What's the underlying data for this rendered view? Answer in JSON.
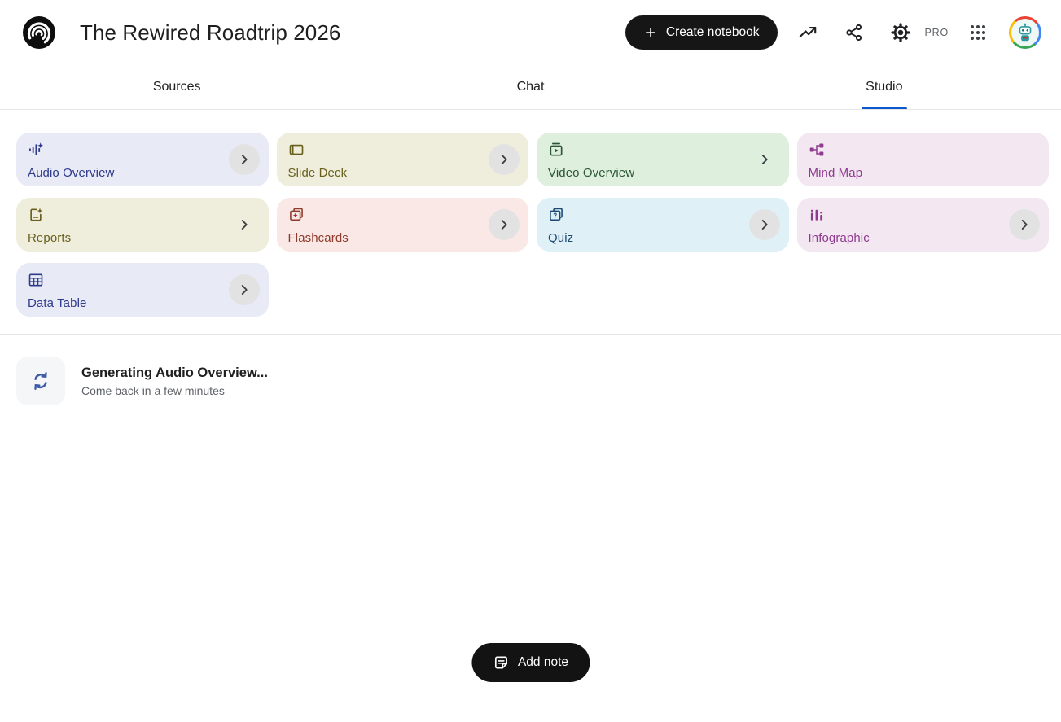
{
  "header": {
    "title": "The Rewired Roadtrip 2026",
    "create_notebook_label": "Create notebook",
    "pro_badge": "PRO"
  },
  "tabs": [
    {
      "label": "Sources",
      "active": false
    },
    {
      "label": "Chat",
      "active": false
    },
    {
      "label": "Studio",
      "active": true
    }
  ],
  "studio": {
    "cards": [
      {
        "label": "Audio Overview",
        "icon": "audio-waveform-sparkle-icon",
        "bg": "#E8EAF6",
        "fg": "#2E3A8C",
        "chevron": "circle"
      },
      {
        "label": "Slide Deck",
        "icon": "slide-deck-icon",
        "bg": "#EFEEDC",
        "fg": "#6A601E",
        "chevron": "circle"
      },
      {
        "label": "Video Overview",
        "icon": "video-overview-icon",
        "bg": "#DEEFDE",
        "fg": "#2C5633",
        "chevron": "plain"
      },
      {
        "label": "Mind Map",
        "icon": "mind-map-icon",
        "bg": "#F3E8F1",
        "fg": "#8F3A8F",
        "chevron": "none"
      },
      {
        "label": "Reports",
        "icon": "report-sparkle-icon",
        "bg": "#EFEEDC",
        "fg": "#6A601E",
        "chevron": "plain"
      },
      {
        "label": "Flashcards",
        "icon": "flashcards-icon",
        "bg": "#F9E8E5",
        "fg": "#8F3A2B",
        "chevron": "circle"
      },
      {
        "label": "Quiz",
        "icon": "quiz-icon",
        "bg": "#DFF0F6",
        "fg": "#1C4A74",
        "chevron": "circle"
      },
      {
        "label": "Infographic",
        "icon": "infographic-icon",
        "bg": "#F3E8F1",
        "fg": "#8F3A8F",
        "chevron": "circle"
      },
      {
        "label": "Data Table",
        "icon": "data-table-icon",
        "bg": "#E8EAF6",
        "fg": "#2E3A8C",
        "chevron": "circle"
      }
    ],
    "status": {
      "title": "Generating Audio Overview...",
      "subtitle": "Come back in a few minutes"
    },
    "add_note_label": "Add note"
  },
  "colors": {
    "accent_blue": "#0b57d0",
    "status_icon_blue": "#3e5ca8",
    "pill_black": "#131313",
    "divider": "#e6e6e6"
  }
}
